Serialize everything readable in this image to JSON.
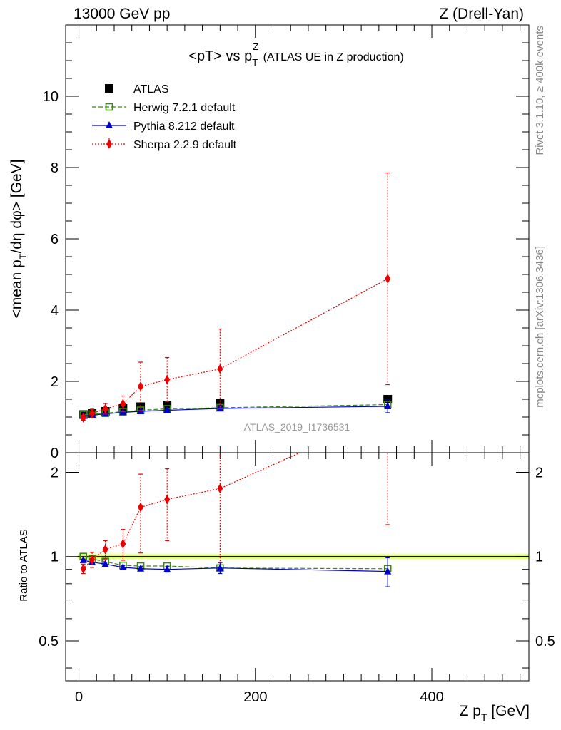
{
  "header": {
    "left": "13000 GeV pp",
    "right": "Z (Drell-Yan)"
  },
  "side_text": {
    "rivet": "Rivet 3.1.10, ≥ 400k events",
    "source": "mcplots.cern.ch [arXiv:1306.3436]"
  },
  "watermark": "ATLAS_2019_I1736531",
  "chart_data": {
    "type": "line",
    "title": {
      "main": "<pT> vs p",
      "sup": "Z",
      "sub": "T",
      "rest": " (ATLAS UE in Z production)"
    },
    "ylabel": {
      "pre": "<mean p",
      "sub": "T",
      "post": "/dη dφ> [GeV]"
    },
    "xlabel": {
      "pre": "Z p",
      "sub": "T",
      "post": " [GeV]"
    },
    "ratio_ylabel": "Ratio to ATLAS",
    "xlim": [
      -15,
      510
    ],
    "ylim": [
      0,
      12
    ],
    "ratio_ylim": [
      0.36,
      2.35
    ],
    "ratio_scale": "log",
    "x_ticks": [
      "0",
      "200",
      "400"
    ],
    "y_ticks": [
      "0",
      "2",
      "4",
      "6",
      "8",
      "10"
    ],
    "ratio_ticks": [
      "0.5",
      "1",
      "2"
    ],
    "x": [
      5,
      15,
      30,
      50,
      70,
      100,
      160,
      350
    ],
    "series": [
      {
        "name": "ATLAS",
        "marker": "square-filled",
        "line": "none",
        "color": "#000000",
        "values": [
          1.07,
          1.1,
          1.16,
          1.24,
          1.29,
          1.32,
          1.38,
          1.5
        ],
        "err": [
          0.02,
          0.02,
          0.02,
          0.02,
          0.03,
          0.03,
          0.04,
          0.05
        ]
      },
      {
        "name": "Herwig 7.2.1 default",
        "marker": "square-open",
        "line": "dashed",
        "color": "#3a8a0f",
        "values": [
          1.07,
          1.08,
          1.11,
          1.15,
          1.19,
          1.23,
          1.26,
          1.35
        ],
        "err": [
          0,
          0,
          0,
          0,
          0,
          0,
          0,
          0
        ],
        "ratio": [
          1.0,
          0.98,
          0.96,
          0.93,
          0.925,
          0.925,
          0.91,
          0.905
        ],
        "ratio_err": [
          0,
          0,
          0,
          0,
          0,
          0,
          0,
          0
        ]
      },
      {
        "name": "Pythia 8.212 default",
        "marker": "triangle-filled",
        "line": "solid",
        "color": "#0000cc",
        "values": [
          1.03,
          1.05,
          1.09,
          1.13,
          1.16,
          1.19,
          1.24,
          1.3
        ],
        "err": [
          0.01,
          0.01,
          0.02,
          0.02,
          0.02,
          0.03,
          0.06,
          0.18
        ],
        "ratio": [
          0.97,
          0.955,
          0.94,
          0.915,
          0.905,
          0.9,
          0.91,
          0.885
        ],
        "ratio_err": [
          0.01,
          0.01,
          0.015,
          0.015,
          0.015,
          0.02,
          0.04,
          0.105
        ]
      },
      {
        "name": "Sherpa 2.2.9 default",
        "marker": "diamond-filled",
        "line": "dotted",
        "color": "#ee0000",
        "values": [
          0.98,
          1.1,
          1.23,
          1.37,
          1.86,
          2.05,
          2.35,
          4.88
        ],
        "err": [
          0.07,
          0.12,
          0.15,
          0.22,
          0.68,
          0.62,
          1.12,
          2.97
        ],
        "ratio": [
          0.905,
          0.975,
          1.06,
          1.11,
          1.5,
          1.6,
          1.75,
          3.25
        ],
        "ratio_err": [
          0.035,
          0.06,
          0.08,
          0.14,
          0.47,
          0.46,
          0.8,
          1.95
        ]
      }
    ],
    "atlas_band": {
      "ratio_low": [
        0.98
      ],
      "ratio_high": [
        1.02
      ],
      "color": "#ccff33"
    },
    "legend_position": "top-left"
  }
}
